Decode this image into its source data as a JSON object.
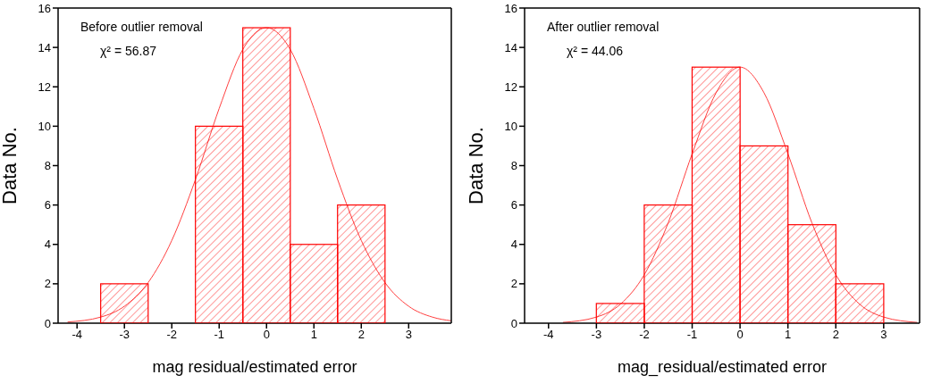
{
  "chart_data": [
    {
      "type": "histogram",
      "bins": [
        -3.5,
        -2.5,
        -1.5,
        -0.5,
        0.5,
        1.5,
        2.5
      ],
      "values": [
        2,
        0,
        10,
        15,
        4,
        6
      ],
      "color": "#ff0000",
      "xlabel": "mag residual/estimated error",
      "ylabel": "Data No.",
      "xlim": [
        -4.4,
        3.9
      ],
      "ylim": [
        0,
        16
      ],
      "xticks": [
        -4,
        -3,
        -2,
        -1,
        0,
        1,
        2,
        3
      ],
      "yticks": [
        0,
        2,
        4,
        6,
        8,
        10,
        12,
        14,
        16
      ],
      "annotations": [
        "Before outlier removal",
        "χ² = 56.87"
      ],
      "series": [
        {
          "type": "line",
          "color": "#ff4040",
          "x": [
            -4.2,
            -3.5,
            -3,
            -2.5,
            -2,
            -1.5,
            -1,
            -0.5,
            0,
            0.5,
            1,
            1.5,
            2,
            2.5,
            3,
            3.5,
            3.9
          ],
          "values": [
            0.06,
            0.31,
            0.86,
            2.06,
            4.2,
            7.3,
            10.9,
            13.9,
            15,
            13.9,
            10.9,
            7.3,
            4.2,
            2.06,
            0.86,
            0.31,
            0.12
          ]
        }
      ]
    },
    {
      "type": "histogram",
      "bins": [
        -3,
        -2,
        -1,
        0,
        1,
        2,
        3
      ],
      "values": [
        1,
        6,
        13,
        9,
        5,
        2
      ],
      "color": "#ff0000",
      "xlabel": "mag_residual/estimated error",
      "ylabel": "Data No.",
      "xlim": [
        -4.5,
        3.75
      ],
      "ylim": [
        0,
        16
      ],
      "xticks": [
        -4,
        -3,
        -2,
        -1,
        0,
        1,
        2,
        3
      ],
      "yticks": [
        0,
        2,
        4,
        6,
        8,
        10,
        12,
        14,
        16
      ],
      "annotations": [
        "After outlier removal",
        "χ² = 44.06"
      ],
      "series": [
        {
          "type": "line",
          "color": "#ff4040",
          "x": [
            -3.7,
            -3,
            -2.5,
            -2,
            -1.5,
            -1,
            -0.5,
            0,
            0.5,
            1,
            1.5,
            2,
            2.5,
            3,
            3.7
          ],
          "values": [
            0.04,
            0.31,
            0.96,
            2.46,
            5.1,
            8.6,
            11.7,
            13,
            11.7,
            8.6,
            5.1,
            2.46,
            0.96,
            0.31,
            0.04
          ]
        }
      ]
    }
  ]
}
